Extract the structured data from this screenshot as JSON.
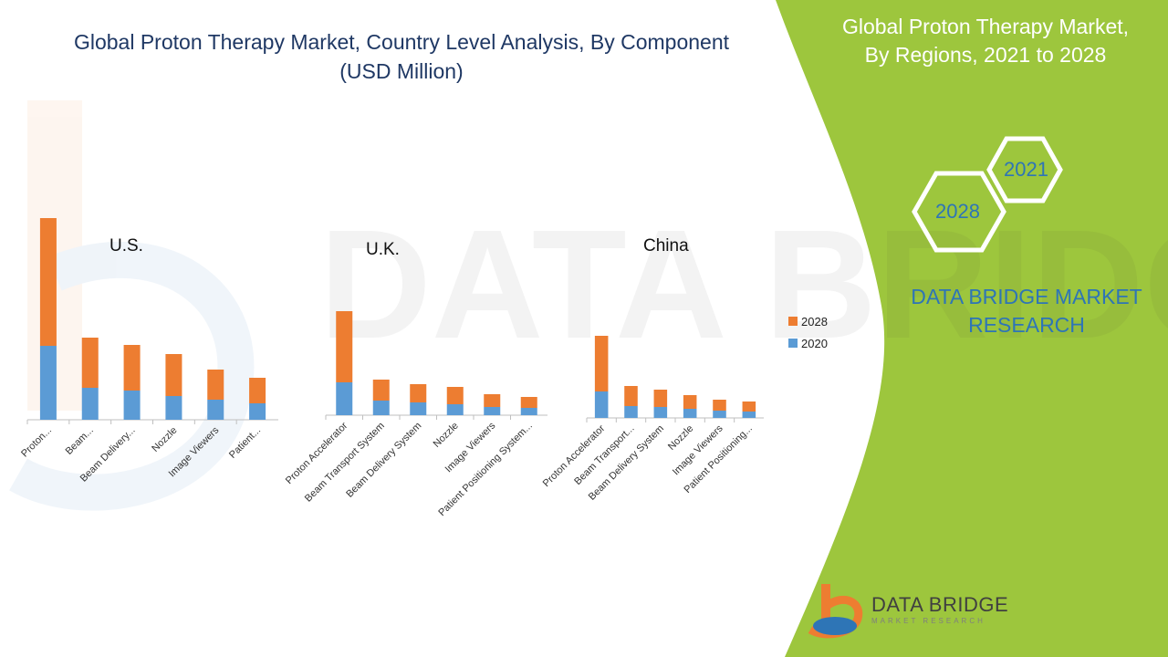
{
  "header": {
    "title_line1": "Global Proton Therapy Market, Country Level Analysis, By Component",
    "title_line2": "(USD Million)"
  },
  "side_panel": {
    "title_line1": "Global Proton Therapy Market,",
    "title_line2": "By Regions, 2021 to 2028",
    "hex_top": "2021",
    "hex_bottom": "2028",
    "brand_line1": "DATA BRIDGE MARKET",
    "brand_line2": "RESEARCH"
  },
  "logo": {
    "name": "DATA BRIDGE",
    "tagline": "MARKET RESEARCH"
  },
  "colors": {
    "series_2020": "#5b9bd5",
    "series_2028": "#ed7d31",
    "panel_green": "#9dc63d",
    "title_blue": "#1f3864",
    "brand_blue": "#2e75b6"
  },
  "legend": {
    "items": [
      "2028",
      "2020"
    ],
    "placement": "right"
  },
  "chart_data": [
    {
      "type": "bar",
      "stacked": true,
      "title": "U.S.",
      "categories": [
        "Proton...",
        "Beam...",
        "Beam Delivery...",
        "Nozzle",
        "Image Viewers",
        "Patient..."
      ],
      "series": [
        {
          "name": "2020",
          "values": [
            81,
            35,
            32,
            26,
            22,
            18
          ]
        },
        {
          "name": "2028",
          "values": [
            140,
            55,
            50,
            46,
            33,
            28
          ]
        }
      ]
    },
    {
      "type": "bar",
      "stacked": true,
      "title": "U.K.",
      "categories": [
        "Proton Accelerator",
        "Beam Transport System",
        "Beam Delivery System",
        "Nozzle",
        "Image Viewers",
        "Patient Positioning System..."
      ],
      "series": [
        {
          "name": "2020",
          "values": [
            36,
            16,
            14,
            12,
            9,
            8
          ]
        },
        {
          "name": "2028",
          "values": [
            78,
            23,
            20,
            19,
            14,
            12
          ]
        }
      ]
    },
    {
      "type": "bar",
      "stacked": true,
      "title": "China",
      "categories": [
        "Proton Accelerator",
        "Beam Transport...",
        "Beam Delivery System",
        "Nozzle",
        "Image Viewers",
        "Patient Positioning..."
      ],
      "series": [
        {
          "name": "2020",
          "values": [
            29,
            13,
            12,
            10,
            8,
            7
          ]
        },
        {
          "name": "2028",
          "values": [
            61,
            22,
            19,
            15,
            12,
            11
          ]
        }
      ]
    }
  ]
}
